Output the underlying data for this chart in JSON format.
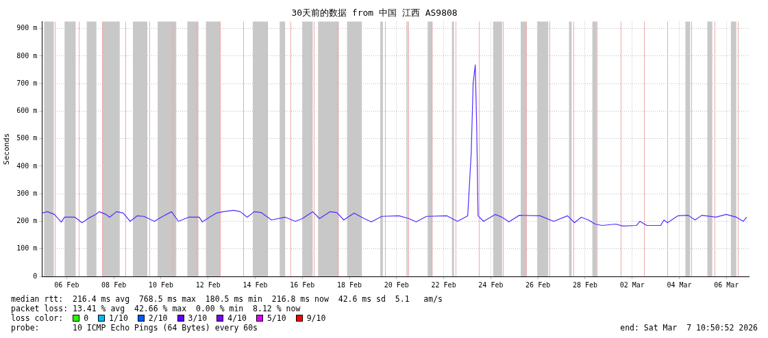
{
  "chart_data": {
    "type": "line",
    "title": "30天前的数据 from 中国 江西 AS9808",
    "ylabel": "Seconds",
    "xlim": [
      "2026-02-05T10:50",
      "2026-03-07T10:50"
    ],
    "xticks": [
      {
        "value": "2026-02-06T12:00",
        "label": "06 Feb"
      },
      {
        "value": "2026-02-08T12:00",
        "label": "08 Feb"
      },
      {
        "value": "2026-02-10T12:00",
        "label": "10 Feb"
      },
      {
        "value": "2026-02-12T12:00",
        "label": "12 Feb"
      },
      {
        "value": "2026-02-14T12:00",
        "label": "14 Feb"
      },
      {
        "value": "2026-02-16T12:00",
        "label": "16 Feb"
      },
      {
        "value": "2026-02-18T12:00",
        "label": "18 Feb"
      },
      {
        "value": "2026-02-20T12:00",
        "label": "20 Feb"
      },
      {
        "value": "2026-02-22T12:00",
        "label": "22 Feb"
      },
      {
        "value": "2026-02-24T12:00",
        "label": "24 Feb"
      },
      {
        "value": "2026-02-26T12:00",
        "label": "26 Feb"
      },
      {
        "value": "2026-02-28T12:00",
        "label": "28 Feb"
      },
      {
        "value": "2026-03-02T12:00",
        "label": "02 Mar"
      },
      {
        "value": "2026-03-04T12:00",
        "label": "04 Mar"
      },
      {
        "value": "2026-03-06T12:00",
        "label": "06 Mar"
      }
    ],
    "ylim": [
      0,
      925
    ],
    "yticks": [
      0,
      {
        "value": 100,
        "label": "100 m"
      },
      {
        "value": 200,
        "label": "200 m"
      },
      {
        "value": 300,
        "label": "300 m"
      },
      {
        "value": 400,
        "label": "400 m"
      },
      {
        "value": 500,
        "label": "500 m"
      },
      {
        "value": 600,
        "label": "600 m"
      },
      {
        "value": 700,
        "label": "700 m"
      },
      {
        "value": 800,
        "label": "800 m"
      },
      {
        "value": 900,
        "label": "900 m"
      }
    ],
    "grid": true,
    "legend": false,
    "marker": "none",
    "line_style": "solid",
    "series": [
      {
        "color": "#4b2bff",
        "x": [
          "2026-02-05T10:52",
          "2026-02-05T16:19",
          "2026-02-05T23:31",
          "2026-02-06T06:29",
          "2026-02-06T09:50",
          "2026-02-06T20:24",
          "2026-02-07T03:36",
          "2026-02-07T10:34",
          "2026-02-07T17:31",
          "2026-02-07T21:07",
          "2026-02-08T04:05",
          "2026-02-08T07:41",
          "2026-02-08T14:38",
          "2026-02-08T21:36",
          "2026-02-09T04:34",
          "2026-02-09T11:46",
          "2026-02-09T18:43",
          "2026-02-10T05:17",
          "2026-02-10T12:14",
          "2026-02-10T22:48",
          "2026-02-11T05:46",
          "2026-02-11T16:19",
          "2026-02-12T02:53",
          "2026-02-12T06:14",
          "2026-02-12T13:26",
          "2026-02-12T20:24",
          "2026-02-13T03:22",
          "2026-02-13T13:55",
          "2026-02-13T20:53",
          "2026-02-14T03:50",
          "2026-02-14T11:02",
          "2026-02-14T18:00",
          "2026-02-15T04:34",
          "2026-02-15T18:29",
          "2026-02-16T05:02",
          "2026-02-16T12:00",
          "2026-02-16T22:34",
          "2026-02-17T05:31",
          "2026-02-17T16:05",
          "2026-02-17T23:02",
          "2026-02-18T06:14",
          "2026-02-18T16:48",
          "2026-02-19T03:07",
          "2026-02-19T10:19",
          "2026-02-19T20:53",
          "2026-02-20T14:24",
          "2026-02-21T00:43",
          "2026-02-21T07:55",
          "2026-02-21T18:29",
          "2026-02-22T15:22",
          "2026-02-23T01:55",
          "2026-02-23T12:29",
          "2026-02-23T16:05",
          "2026-02-23T18:00",
          "2026-02-23T20:10",
          "2026-02-23T21:36",
          "2026-02-23T23:02",
          "2026-02-24T04:34",
          "2026-02-24T16:34",
          "2026-02-24T23:31",
          "2026-02-25T06:29",
          "2026-02-25T17:02",
          "2026-02-26T14:10",
          "2026-02-27T04:05",
          "2026-02-27T18:14",
          "2026-02-28T01:12",
          "2026-02-28T08:10",
          "2026-02-28T15:22",
          "2026-02-28T22:19",
          "2026-03-01T05:17",
          "2026-03-01T19:26",
          "2026-03-02T02:24",
          "2026-03-02T16:19",
          "2026-03-02T19:55",
          "2026-03-03T02:53",
          "2026-03-03T17:02",
          "2026-03-03T20:24",
          "2026-03-04T00:00",
          "2026-03-04T10:34",
          "2026-03-04T21:07",
          "2026-03-05T04:05",
          "2026-03-05T11:02",
          "2026-03-06T01:12",
          "2026-03-06T11:46",
          "2026-03-06T22:05",
          "2026-03-07T05:17",
          "2026-03-07T08:38"
        ],
        "values": [
          230,
          235,
          225,
          197,
          215,
          215,
          195,
          212,
          225,
          235,
          225,
          215,
          235,
          230,
          200,
          220,
          218,
          200,
          215,
          235,
          200,
          215,
          215,
          198,
          215,
          230,
          235,
          240,
          235,
          215,
          235,
          232,
          205,
          215,
          200,
          210,
          235,
          210,
          235,
          232,
          205,
          230,
          210,
          198,
          218,
          220,
          210,
          198,
          218,
          220,
          200,
          220,
          450,
          700,
          768,
          550,
          220,
          200,
          225,
          215,
          198,
          222,
          220,
          200,
          220,
          195,
          215,
          205,
          190,
          185,
          190,
          183,
          185,
          200,
          185,
          185,
          205,
          195,
          220,
          222,
          205,
          222,
          215,
          225,
          215,
          200,
          215
        ]
      }
    ],
    "bands": [
      {
        "axis": "x",
        "from": "2026-02-05T12:58",
        "to": "2026-02-05T22:48",
        "color": "#c8c8c8"
      },
      {
        "axis": "x",
        "from": "2026-02-06T09:50",
        "to": "2026-02-06T21:07",
        "color": "#c8c8c8"
      },
      {
        "axis": "x",
        "from": "2026-02-07T08:24",
        "to": "2026-02-07T18:14",
        "color": "#c8c8c8"
      },
      {
        "axis": "x",
        "from": "2026-02-08T00:29",
        "to": "2026-02-08T18:00",
        "color": "#c8c8c8"
      },
      {
        "axis": "x",
        "from": "2026-02-09T07:26",
        "to": "2026-02-09T22:05",
        "color": "#c8c8c8"
      },
      {
        "axis": "x",
        "from": "2026-02-10T08:38",
        "to": "2026-02-11T03:36",
        "color": "#c8c8c8"
      },
      {
        "axis": "x",
        "from": "2026-02-11T14:53",
        "to": "2026-02-12T02:10",
        "color": "#c8c8c8"
      },
      {
        "axis": "x",
        "from": "2026-02-12T09:50",
        "to": "2026-02-13T00:29",
        "color": "#c8c8c8"
      },
      {
        "axis": "x",
        "from": "2026-02-14T09:36",
        "to": "2026-02-15T00:14",
        "color": "#c8c8c8"
      },
      {
        "axis": "x",
        "from": "2026-02-15T12:58",
        "to": "2026-02-15T18:29",
        "color": "#c8c8c8"
      },
      {
        "axis": "x",
        "from": "2026-02-16T12:00",
        "to": "2026-02-16T22:34",
        "color": "#c8c8c8"
      },
      {
        "axis": "x",
        "from": "2026-02-17T04:05",
        "to": "2026-02-18T01:12",
        "color": "#c8c8c8"
      },
      {
        "axis": "x",
        "from": "2026-02-18T09:36",
        "to": "2026-02-18T23:46",
        "color": "#c8c8c8"
      },
      {
        "axis": "x",
        "from": "2026-02-19T19:26",
        "to": "2026-02-19T22:05",
        "color": "#c8c8c8"
      },
      {
        "axis": "x",
        "from": "2026-02-20T22:05",
        "to": "2026-02-20T23:31",
        "color": "#c8c8c8"
      },
      {
        "axis": "x",
        "from": "2026-02-21T19:41",
        "to": "2026-02-22T00:43",
        "color": "#c8c8c8"
      },
      {
        "axis": "x",
        "from": "2026-02-22T20:24",
        "to": "2026-02-22T22:34",
        "color": "#c8c8c8"
      },
      {
        "axis": "x",
        "from": "2026-02-24T14:24",
        "to": "2026-02-24T23:31",
        "color": "#c8c8c8"
      },
      {
        "axis": "x",
        "from": "2026-02-25T18:29",
        "to": "2026-02-26T00:14",
        "color": "#c8c8c8"
      },
      {
        "axis": "x",
        "from": "2026-02-26T11:17",
        "to": "2026-02-26T22:34",
        "color": "#c8c8c8"
      },
      {
        "axis": "x",
        "from": "2026-02-27T19:41",
        "to": "2026-02-27T22:19",
        "color": "#c8c8c8"
      },
      {
        "axis": "x",
        "from": "2026-02-28T19:26",
        "to": "2026-02-28T23:46",
        "color": "#c8c8c8"
      },
      {
        "axis": "x",
        "from": "2026-03-04T18:14",
        "to": "2026-03-04T23:02",
        "color": "#c8c8c8"
      },
      {
        "axis": "x",
        "from": "2026-03-05T16:34",
        "to": "2026-03-05T21:36",
        "color": "#c8c8c8"
      },
      {
        "axis": "x",
        "from": "2026-03-06T16:34",
        "to": "2026-03-06T22:05",
        "color": "#c8c8c8"
      }
    ],
    "ref_lines": [
      {
        "axis": "x",
        "value": "2026-02-06",
        "color": "#f0a8a8"
      },
      {
        "axis": "x",
        "value": "2026-02-07",
        "color": "#f0a8a8"
      },
      {
        "axis": "x",
        "value": "2026-02-08",
        "color": "#f0a8a8"
      },
      {
        "axis": "x",
        "value": "2026-02-09",
        "color": "#f0a8a8"
      },
      {
        "axis": "x",
        "value": "2026-02-10",
        "color": "#f0a8a8"
      },
      {
        "axis": "x",
        "value": "2026-02-11",
        "color": "#f0a8a8"
      },
      {
        "axis": "x",
        "value": "2026-02-12",
        "color": "#f0a8a8"
      },
      {
        "axis": "x",
        "value": "2026-02-13",
        "color": "#f0a8a8"
      },
      {
        "axis": "x",
        "value": "2026-02-14",
        "color": "#f0a8a8"
      },
      {
        "axis": "x",
        "value": "2026-02-15",
        "color": "#f0a8a8"
      },
      {
        "axis": "x",
        "value": "2026-02-16",
        "color": "#f0a8a8"
      },
      {
        "axis": "x",
        "value": "2026-02-17",
        "color": "#f0a8a8"
      },
      {
        "axis": "x",
        "value": "2026-02-18",
        "color": "#f0a8a8"
      },
      {
        "axis": "x",
        "value": "2026-02-19",
        "color": "#f0a8a8"
      },
      {
        "axis": "x",
        "value": "2026-02-20",
        "color": "#f0a8a8"
      },
      {
        "axis": "x",
        "value": "2026-02-21",
        "color": "#f0a8a8"
      },
      {
        "axis": "x",
        "value": "2026-02-22",
        "color": "#f0a8a8"
      },
      {
        "axis": "x",
        "value": "2026-02-23",
        "color": "#f0a8a8"
      },
      {
        "axis": "x",
        "value": "2026-02-24",
        "color": "#f0a8a8"
      },
      {
        "axis": "x",
        "value": "2026-02-25",
        "color": "#f0a8a8"
      },
      {
        "axis": "x",
        "value": "2026-02-26",
        "color": "#f0a8a8"
      },
      {
        "axis": "x",
        "value": "2026-02-27",
        "color": "#f0a8a8"
      },
      {
        "axis": "x",
        "value": "2026-02-28",
        "color": "#f0a8a8"
      },
      {
        "axis": "x",
        "value": "2026-03-01",
        "color": "#f0a8a8"
      },
      {
        "axis": "x",
        "value": "2026-03-02",
        "color": "#f0a8a8"
      },
      {
        "axis": "x",
        "value": "2026-03-03",
        "color": "#f0a8a8"
      },
      {
        "axis": "x",
        "value": "2026-03-04",
        "color": "#f0a8a8"
      },
      {
        "axis": "x",
        "value": "2026-03-05",
        "color": "#f0a8a8"
      },
      {
        "axis": "x",
        "value": "2026-03-06",
        "color": "#f0a8a8"
      },
      {
        "axis": "x",
        "value": "2026-03-07",
        "color": "#f0a8a8"
      }
    ],
    "annotations": [
      "median rtt:  216.4 ms avg  768.5 ms max  180.5 ms min  216.8 ms now  42.6 ms sd  5.1   am/s",
      "packet loss: 13.41 % avg  42.66 % max  0.00 % min  8.12 % now",
      "loss color:",
      "0",
      "1/10",
      "2/10",
      "3/10",
      "4/10",
      "5/10",
      "9/10",
      "probe:       10 ICMP Echo Pings (64 Bytes) every 60s",
      "end: Sat Mar  7 10:50:52 2026"
    ]
  }
}
